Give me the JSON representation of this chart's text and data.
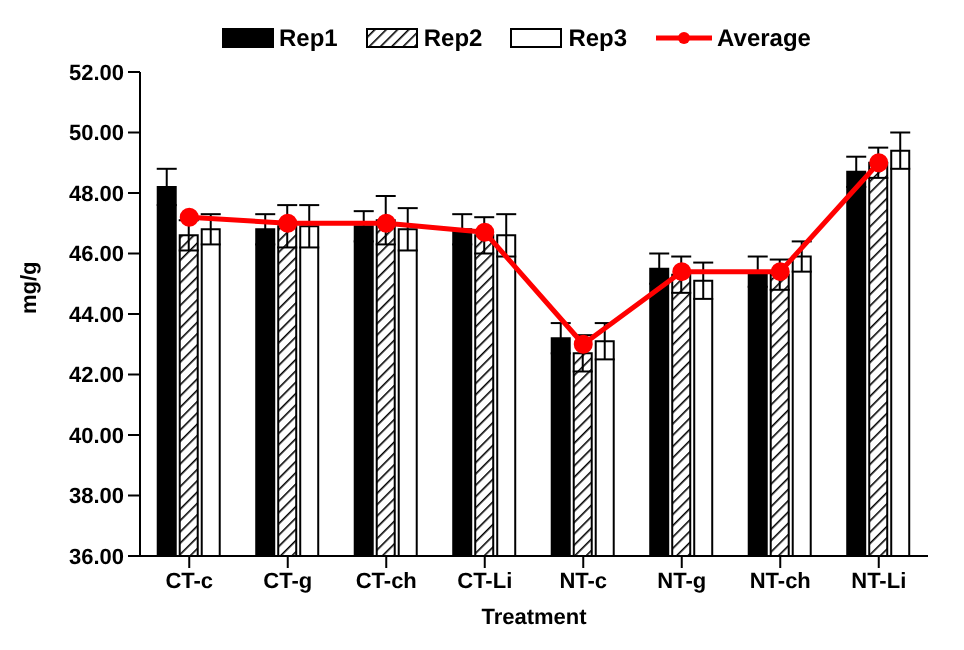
{
  "chart_data": {
    "type": "bar",
    "xlabel": "Treatment",
    "ylabel": "mg/g",
    "categories": [
      "CT-c",
      "CT-g",
      "CT-ch",
      "CT-Li",
      "NT-c",
      "NT-g",
      "NT-ch",
      "NT-Li"
    ],
    "series": [
      {
        "name": "Rep1",
        "color": "#000000",
        "values": [
          48.2,
          46.8,
          46.9,
          46.8,
          43.2,
          45.5,
          45.4,
          48.7
        ],
        "errors": [
          0.6,
          0.5,
          0.5,
          0.5,
          0.5,
          0.5,
          0.5,
          0.5
        ]
      },
      {
        "name": "Rep2",
        "color": "#000000",
        "values": [
          46.6,
          46.9,
          47.1,
          46.6,
          42.7,
          45.3,
          45.3,
          49.0
        ],
        "errors": [
          0.5,
          0.7,
          0.8,
          0.6,
          0.6,
          0.6,
          0.5,
          0.5
        ]
      },
      {
        "name": "Rep3",
        "color": "#ffffff",
        "values": [
          46.8,
          46.9,
          46.8,
          46.6,
          43.1,
          45.1,
          45.9,
          49.4
        ],
        "errors": [
          0.5,
          0.7,
          0.7,
          0.7,
          0.6,
          0.6,
          0.5,
          0.6
        ]
      },
      {
        "name": "Average",
        "type": "line",
        "color": "#ff0000",
        "values": [
          47.2,
          47.0,
          47.0,
          46.7,
          43.0,
          45.4,
          45.4,
          49.0
        ]
      }
    ],
    "ylim": [
      36,
      52
    ],
    "yticks": [
      {
        "value": 36,
        "label": "36.00"
      },
      {
        "value": 38,
        "label": "38.00"
      },
      {
        "value": 40,
        "label": "40.00"
      },
      {
        "value": 42,
        "label": "42.00"
      },
      {
        "value": 44,
        "label": "44.00"
      },
      {
        "value": 46,
        "label": "46.00"
      },
      {
        "value": 48,
        "label": "48.00"
      },
      {
        "value": 50,
        "label": "50.00"
      },
      {
        "value": 52,
        "label": "52.00"
      }
    ],
    "grid": false,
    "legend": "top",
    "marker": "circle"
  }
}
